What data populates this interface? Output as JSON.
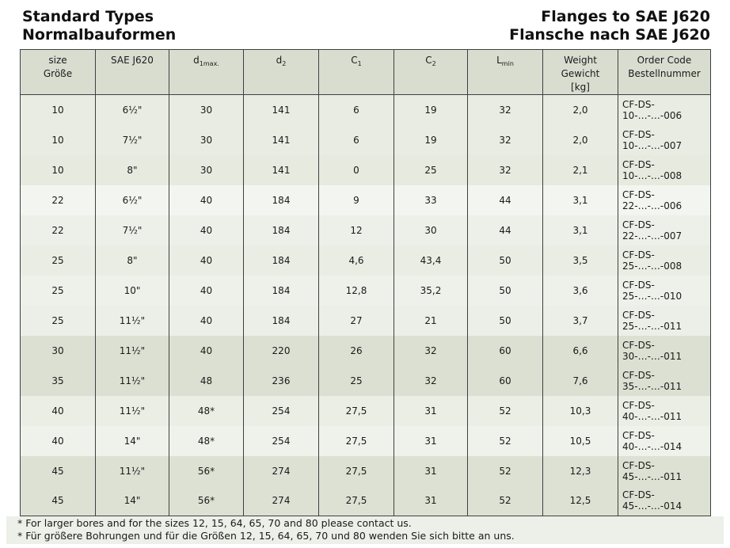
{
  "page": {
    "title_left_line1": "Standard Types",
    "title_left_line2": "Normalbauformen",
    "title_right_line1": "Flanges to SAE J620",
    "title_right_line2": "Flansche nach SAE J620"
  },
  "colors": {
    "header_bg": "#d9ddd0",
    "border": "#3f3f3f",
    "footnote_bg": "#edf0e8",
    "text": "#1a1a1a"
  },
  "table": {
    "headers": {
      "size": {
        "line1": "size",
        "line2": "Größe"
      },
      "sae": "SAE J620",
      "d1": {
        "base": "d",
        "sub": "1max."
      },
      "d2": {
        "base": "d",
        "sub": "2"
      },
      "c1": {
        "base": "C",
        "sub": "1"
      },
      "c2": {
        "base": "C",
        "sub": "2"
      },
      "lmin": {
        "base": "L",
        "sub": "min"
      },
      "weight": {
        "line1": "Weight",
        "line2": "Gewicht",
        "line3": "[kg]"
      },
      "order": {
        "line1": "Order Code",
        "line2": "Bestellnummer"
      }
    },
    "rows": [
      {
        "size": "10",
        "sae": "6½\"",
        "d1": "30",
        "d2": "141",
        "c1": "6",
        "c2": "19",
        "lmin": "32",
        "weight": "2,0",
        "order": "CF-DS-10-…-…-006",
        "bg": "#e9ece3"
      },
      {
        "size": "10",
        "sae": "7½\"",
        "d1": "30",
        "d2": "141",
        "c1": "6",
        "c2": "19",
        "lmin": "32",
        "weight": "2,0",
        "order": "CF-DS-10-…-…-007",
        "bg": "#e9ece3"
      },
      {
        "size": "10",
        "sae": "8\"",
        "d1": "30",
        "d2": "141",
        "c1": "0",
        "c2": "25",
        "lmin": "32",
        "weight": "2,1",
        "order": "CF-DS-10-…-…-008",
        "bg": "#e7eadf"
      },
      {
        "size": "22",
        "sae": "6½\"",
        "d1": "40",
        "d2": "184",
        "c1": "9",
        "c2": "33",
        "lmin": "44",
        "weight": "3,1",
        "order": "CF-DS-22-…-…-006",
        "bg": "#f3f5f0"
      },
      {
        "size": "22",
        "sae": "7½\"",
        "d1": "40",
        "d2": "184",
        "c1": "12",
        "c2": "30",
        "lmin": "44",
        "weight": "3,1",
        "order": "CF-DS-22-…-…-007",
        "bg": "#edf0e9"
      },
      {
        "size": "25",
        "sae": "8\"",
        "d1": "40",
        "d2": "184",
        "c1": "4,6",
        "c2": "43,4",
        "lmin": "50",
        "weight": "3,5",
        "order": "CF-DS-25-…-…-008",
        "bg": "#eaede4"
      },
      {
        "size": "25",
        "sae": "10\"",
        "d1": "40",
        "d2": "184",
        "c1": "12,8",
        "c2": "35,2",
        "lmin": "50",
        "weight": "3,6",
        "order": "CF-DS-25-…-…-010",
        "bg": "#eef1ea"
      },
      {
        "size": "25",
        "sae": "11½\"",
        "d1": "40",
        "d2": "184",
        "c1": "27",
        "c2": "21",
        "lmin": "50",
        "weight": "3,7",
        "order": "CF-DS-25-…-…-011",
        "bg": "#ecefe7"
      },
      {
        "size": "30",
        "sae": "11½\"",
        "d1": "40",
        "d2": "220",
        "c1": "26",
        "c2": "32",
        "lmin": "60",
        "weight": "6,6",
        "order": "CF-DS-30-…-…-011",
        "bg": "#dce0d2"
      },
      {
        "size": "35",
        "sae": "11½\"",
        "d1": "48",
        "d2": "236",
        "c1": "25",
        "c2": "32",
        "lmin": "60",
        "weight": "7,6",
        "order": "CF-DS-35-…-…-011",
        "bg": "#dce0d2"
      },
      {
        "size": "40",
        "sae": "11½\"",
        "d1": "48*",
        "d2": "254",
        "c1": "27,5",
        "c2": "31",
        "lmin": "52",
        "weight": "10,3",
        "order": "CF-DS-40-…-…-011",
        "bg": "#ebeee5"
      },
      {
        "size": "40",
        "sae": "14\"",
        "d1": "48*",
        "d2": "254",
        "c1": "27,5",
        "c2": "31",
        "lmin": "52",
        "weight": "10,5",
        "order": "CF-DS-40-…-…-014",
        "bg": "#eff2eb"
      },
      {
        "size": "45",
        "sae": "11½\"",
        "d1": "56*",
        "d2": "274",
        "c1": "27,5",
        "c2": "31",
        "lmin": "52",
        "weight": "12,3",
        "order": "CF-DS-45-…-…-011",
        "bg": "#dde1d4"
      },
      {
        "size": "45",
        "sae": "14\"",
        "d1": "56*",
        "d2": "274",
        "c1": "27,5",
        "c2": "31",
        "lmin": "52",
        "weight": "12,5",
        "order": "CF-DS-45-…-…-014",
        "bg": "#dde1d4"
      }
    ]
  },
  "footnotes": [
    "* For larger bores and for the sizes 12, 15, 64, 65, 70 and 80 please contact us.",
    "* Für größere Bohrungen und für die Größen 12, 15, 64, 65, 70 und 80 wenden Sie sich bitte an uns."
  ]
}
